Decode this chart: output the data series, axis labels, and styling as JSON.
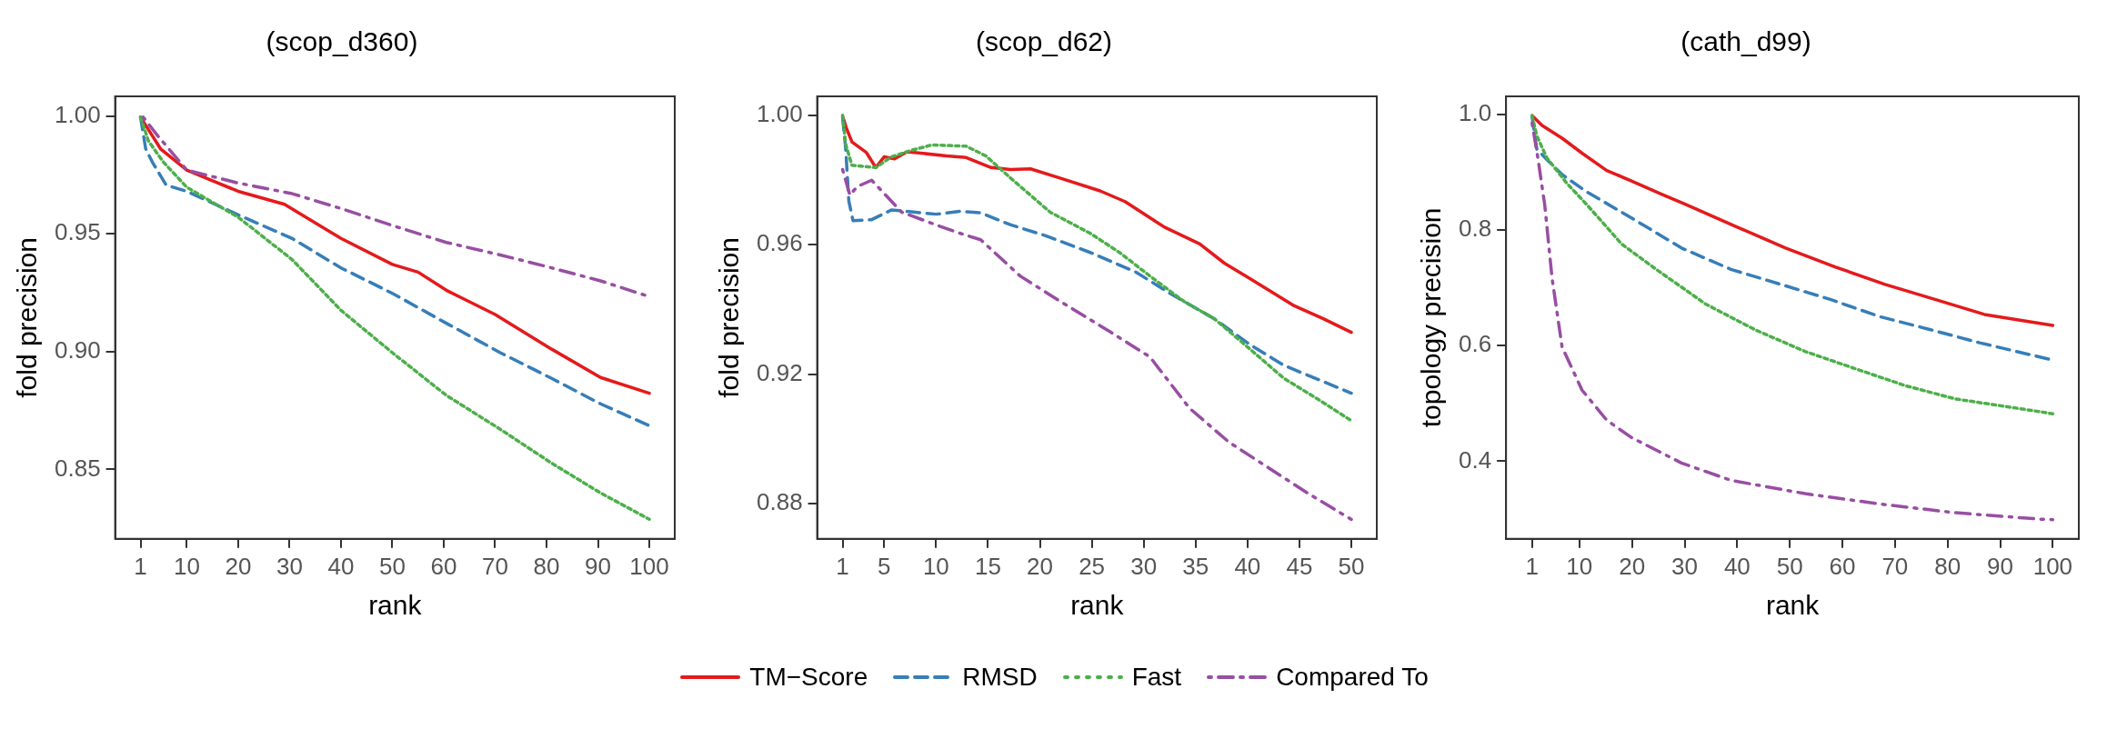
{
  "chart_data": [
    {
      "type": "line",
      "title": "(scop_d360)",
      "xlabel": "rank",
      "ylabel": "fold precision",
      "legend": "bottom",
      "grid": false,
      "xlim": [
        -3.95,
        104.95
      ],
      "xticks": [
        1,
        10,
        20,
        30,
        40,
        50,
        60,
        70,
        80,
        90,
        100
      ],
      "ylim": [
        0.8205,
        1.0083
      ],
      "yticks": [
        {
          "value": 0.85,
          "label": "0.85"
        },
        {
          "value": 0.9,
          "label": "0.90"
        },
        {
          "value": 0.95,
          "label": "0.95"
        },
        {
          "value": 1,
          "label": "1.00"
        }
      ],
      "series": [
        {
          "name": "TM−Score",
          "color": "#e41a1c",
          "line_style": "solid",
          "x": [
            1,
            4.9,
            10,
            15,
            20,
            29,
            40,
            50,
            55,
            60.5,
            70,
            81,
            90.5,
            100
          ],
          "values": [
            0.9995,
            0.986,
            0.977,
            0.9725,
            0.968,
            0.9625,
            0.948,
            0.937,
            0.9337,
            0.926,
            0.9157,
            0.901,
            0.889,
            0.8823
          ]
        },
        {
          "name": "RMSD",
          "color": "#377eb8",
          "line_style": "dashed",
          "x": [
            1,
            2,
            3.4,
            6,
            10,
            20,
            30.5,
            40,
            50,
            60.5,
            71,
            81,
            90.5,
            100
          ],
          "values": [
            0.9995,
            0.986,
            0.98,
            0.9706,
            0.968,
            0.958,
            0.948,
            0.9355,
            0.9247,
            0.912,
            0.8995,
            0.8886,
            0.8778,
            0.8685
          ]
        },
        {
          "name": "Fast",
          "color": "#4daf4a",
          "line_style": "dotted",
          "x": [
            1,
            2.5,
            5.4,
            10,
            20,
            30.5,
            40,
            50,
            60.5,
            71,
            81,
            90.5,
            100
          ],
          "values": [
            0.9995,
            0.9895,
            0.9805,
            0.9697,
            0.957,
            0.939,
            0.9175,
            0.8995,
            0.8814,
            0.867,
            0.8526,
            0.84,
            0.8288
          ]
        },
        {
          "name": "Compared To",
          "color": "#984ea3",
          "line_style": "dashdot",
          "x": [
            1.5,
            4.4,
            10,
            20,
            30.5,
            40,
            50,
            60.5,
            71,
            81,
            90.5,
            100
          ],
          "values": [
            0.9995,
            0.9914,
            0.977,
            0.9715,
            0.967,
            0.9607,
            0.9535,
            0.9463,
            0.941,
            0.9355,
            0.93,
            0.9233
          ]
        }
      ]
    },
    {
      "type": "line",
      "title": "(scop_d62)",
      "xlabel": "rank",
      "ylabel": "fold precision",
      "grid": false,
      "xlim": [
        -1.45,
        52.45
      ],
      "xticks": [
        1,
        5,
        10,
        15,
        20,
        25,
        30,
        35,
        40,
        45,
        50
      ],
      "ylim": [
        0.8691,
        1.0058
      ],
      "yticks": [
        {
          "value": 0.88,
          "label": "0.88"
        },
        {
          "value": 0.92,
          "label": "0.92"
        },
        {
          "value": 0.96,
          "label": "0.96"
        },
        {
          "value": 1,
          "label": "1.00"
        }
      ],
      "series": [
        {
          "color": "#e41a1c",
          "line_style": "solid",
          "x": [
            1,
            1.4,
            1.9,
            3.3,
            4.2,
            5,
            6,
            7.2,
            11,
            12.9,
            15.3,
            17.2,
            19.1,
            22,
            25.8,
            28.2,
            32,
            35.4,
            37.8,
            40.2,
            44.5,
            47.3,
            50
          ],
          "values": [
            0.9996,
            0.9957,
            0.9917,
            0.9884,
            0.9838,
            0.9871,
            0.9865,
            0.9887,
            0.9874,
            0.9869,
            0.9838,
            0.9832,
            0.9834,
            0.9805,
            0.9766,
            0.9733,
            0.9654,
            0.9602,
            0.9542,
            0.9496,
            0.9411,
            0.9371,
            0.9329
          ]
        },
        {
          "color": "#377eb8",
          "line_style": "dashed",
          "x": [
            1,
            1.3,
            1.6,
            2,
            3.8,
            5.7,
            10,
            12.4,
            14.3,
            17.2,
            20.5,
            24.9,
            29.2,
            32.5,
            36.8,
            40.2,
            43.5,
            50
          ],
          "values": [
            0.9992,
            0.9897,
            0.9735,
            0.9674,
            0.9677,
            0.9707,
            0.9694,
            0.9703,
            0.9698,
            0.9661,
            0.9628,
            0.9575,
            0.9516,
            0.945,
            0.9371,
            0.9292,
            0.9227,
            0.9141
          ]
        },
        {
          "color": "#4daf4a",
          "line_style": "dotted",
          "x": [
            1,
            1.3,
            1.9,
            4.2,
            5.7,
            7.6,
            9.6,
            12.9,
            14.8,
            17.2,
            21,
            24.9,
            27.7,
            30.6,
            33.9,
            36.8,
            39.7,
            43.5,
            46.8,
            50
          ],
          "values": [
            1,
            0.991,
            0.9845,
            0.9838,
            0.9871,
            0.9891,
            0.9908,
            0.9904,
            0.9874,
            0.9805,
            0.97,
            0.9634,
            0.9575,
            0.9503,
            0.9424,
            0.9371,
            0.9292,
            0.9187,
            0.9122,
            0.9056
          ]
        },
        {
          "color": "#984ea3",
          "line_style": "dashdot",
          "x": [
            1,
            1.7,
            2.4,
            3.8,
            6.7,
            10,
            12.4,
            14.3,
            18.1,
            22,
            26.7,
            30.6,
            34.4,
            38.2,
            42,
            45.8,
            50
          ],
          "values": [
            0.9832,
            0.9753,
            0.9779,
            0.9799,
            0.97,
            0.9661,
            0.9634,
            0.9615,
            0.9503,
            0.9424,
            0.9332,
            0.9253,
            0.9095,
            0.899,
            0.8911,
            0.8832,
            0.8751
          ]
        }
      ]
    },
    {
      "type": "line",
      "title": "(cath_d99)",
      "xlabel": "rank",
      "ylabel": "topology precision",
      "grid": false,
      "xlim": [
        -3.95,
        104.95
      ],
      "xticks": [
        1,
        10,
        20,
        30,
        40,
        50,
        60,
        70,
        80,
        90,
        100
      ],
      "ylim": [
        0.2658,
        1.0313
      ],
      "yticks": [
        {
          "value": 0.4,
          "label": "0.4"
        },
        {
          "value": 0.6,
          "label": "0.6"
        },
        {
          "value": 0.8,
          "label": "0.8"
        },
        {
          "value": 1,
          "label": "1.0"
        }
      ],
      "series": [
        {
          "color": "#e41a1c",
          "line_style": "solid",
          "x": [
            1,
            2.9,
            6.7,
            10.5,
            15.2,
            19.9,
            25.6,
            30.3,
            39.8,
            49.2,
            58.7,
            68.1,
            77.6,
            87,
            100
          ],
          "values": [
            0.998,
            0.981,
            0.959,
            0.933,
            0.903,
            0.885,
            0.862,
            0.844,
            0.806,
            0.769,
            0.736,
            0.706,
            0.68,
            0.654,
            0.635
          ]
        },
        {
          "color": "#377eb8",
          "line_style": "dashed",
          "x": [
            1,
            1.9,
            3.8,
            6.7,
            11.4,
            19.9,
            29.4,
            38.8,
            48.3,
            57.7,
            67.2,
            76.6,
            86.1,
            100
          ],
          "values": [
            0.996,
            0.94,
            0.922,
            0.896,
            0.866,
            0.821,
            0.769,
            0.732,
            0.706,
            0.68,
            0.65,
            0.628,
            0.605,
            0.575
          ]
        },
        {
          "color": "#4daf4a",
          "line_style": "dotted",
          "x": [
            1,
            1.9,
            3.8,
            7.6,
            11.4,
            18,
            24.6,
            34,
            43.5,
            52.9,
            62.5,
            71.9,
            81.4,
            97.4,
            100
          ],
          "values": [
            0.998,
            0.963,
            0.925,
            0.881,
            0.844,
            0.776,
            0.732,
            0.672,
            0.627,
            0.59,
            0.56,
            0.531,
            0.508,
            0.486,
            0.482
          ]
        },
        {
          "color": "#984ea3",
          "line_style": "dashdot",
          "x": [
            1,
            2.1,
            3.4,
            4.8,
            6.7,
            10.5,
            15.2,
            19.9,
            29.4,
            38.8,
            52.9,
            67.2,
            81.4,
            97.4,
            100
          ],
          "values": [
            0.985,
            0.925,
            0.844,
            0.717,
            0.598,
            0.523,
            0.471,
            0.441,
            0.397,
            0.367,
            0.344,
            0.326,
            0.311,
            0.3,
            0.299
          ]
        }
      ]
    }
  ]
}
